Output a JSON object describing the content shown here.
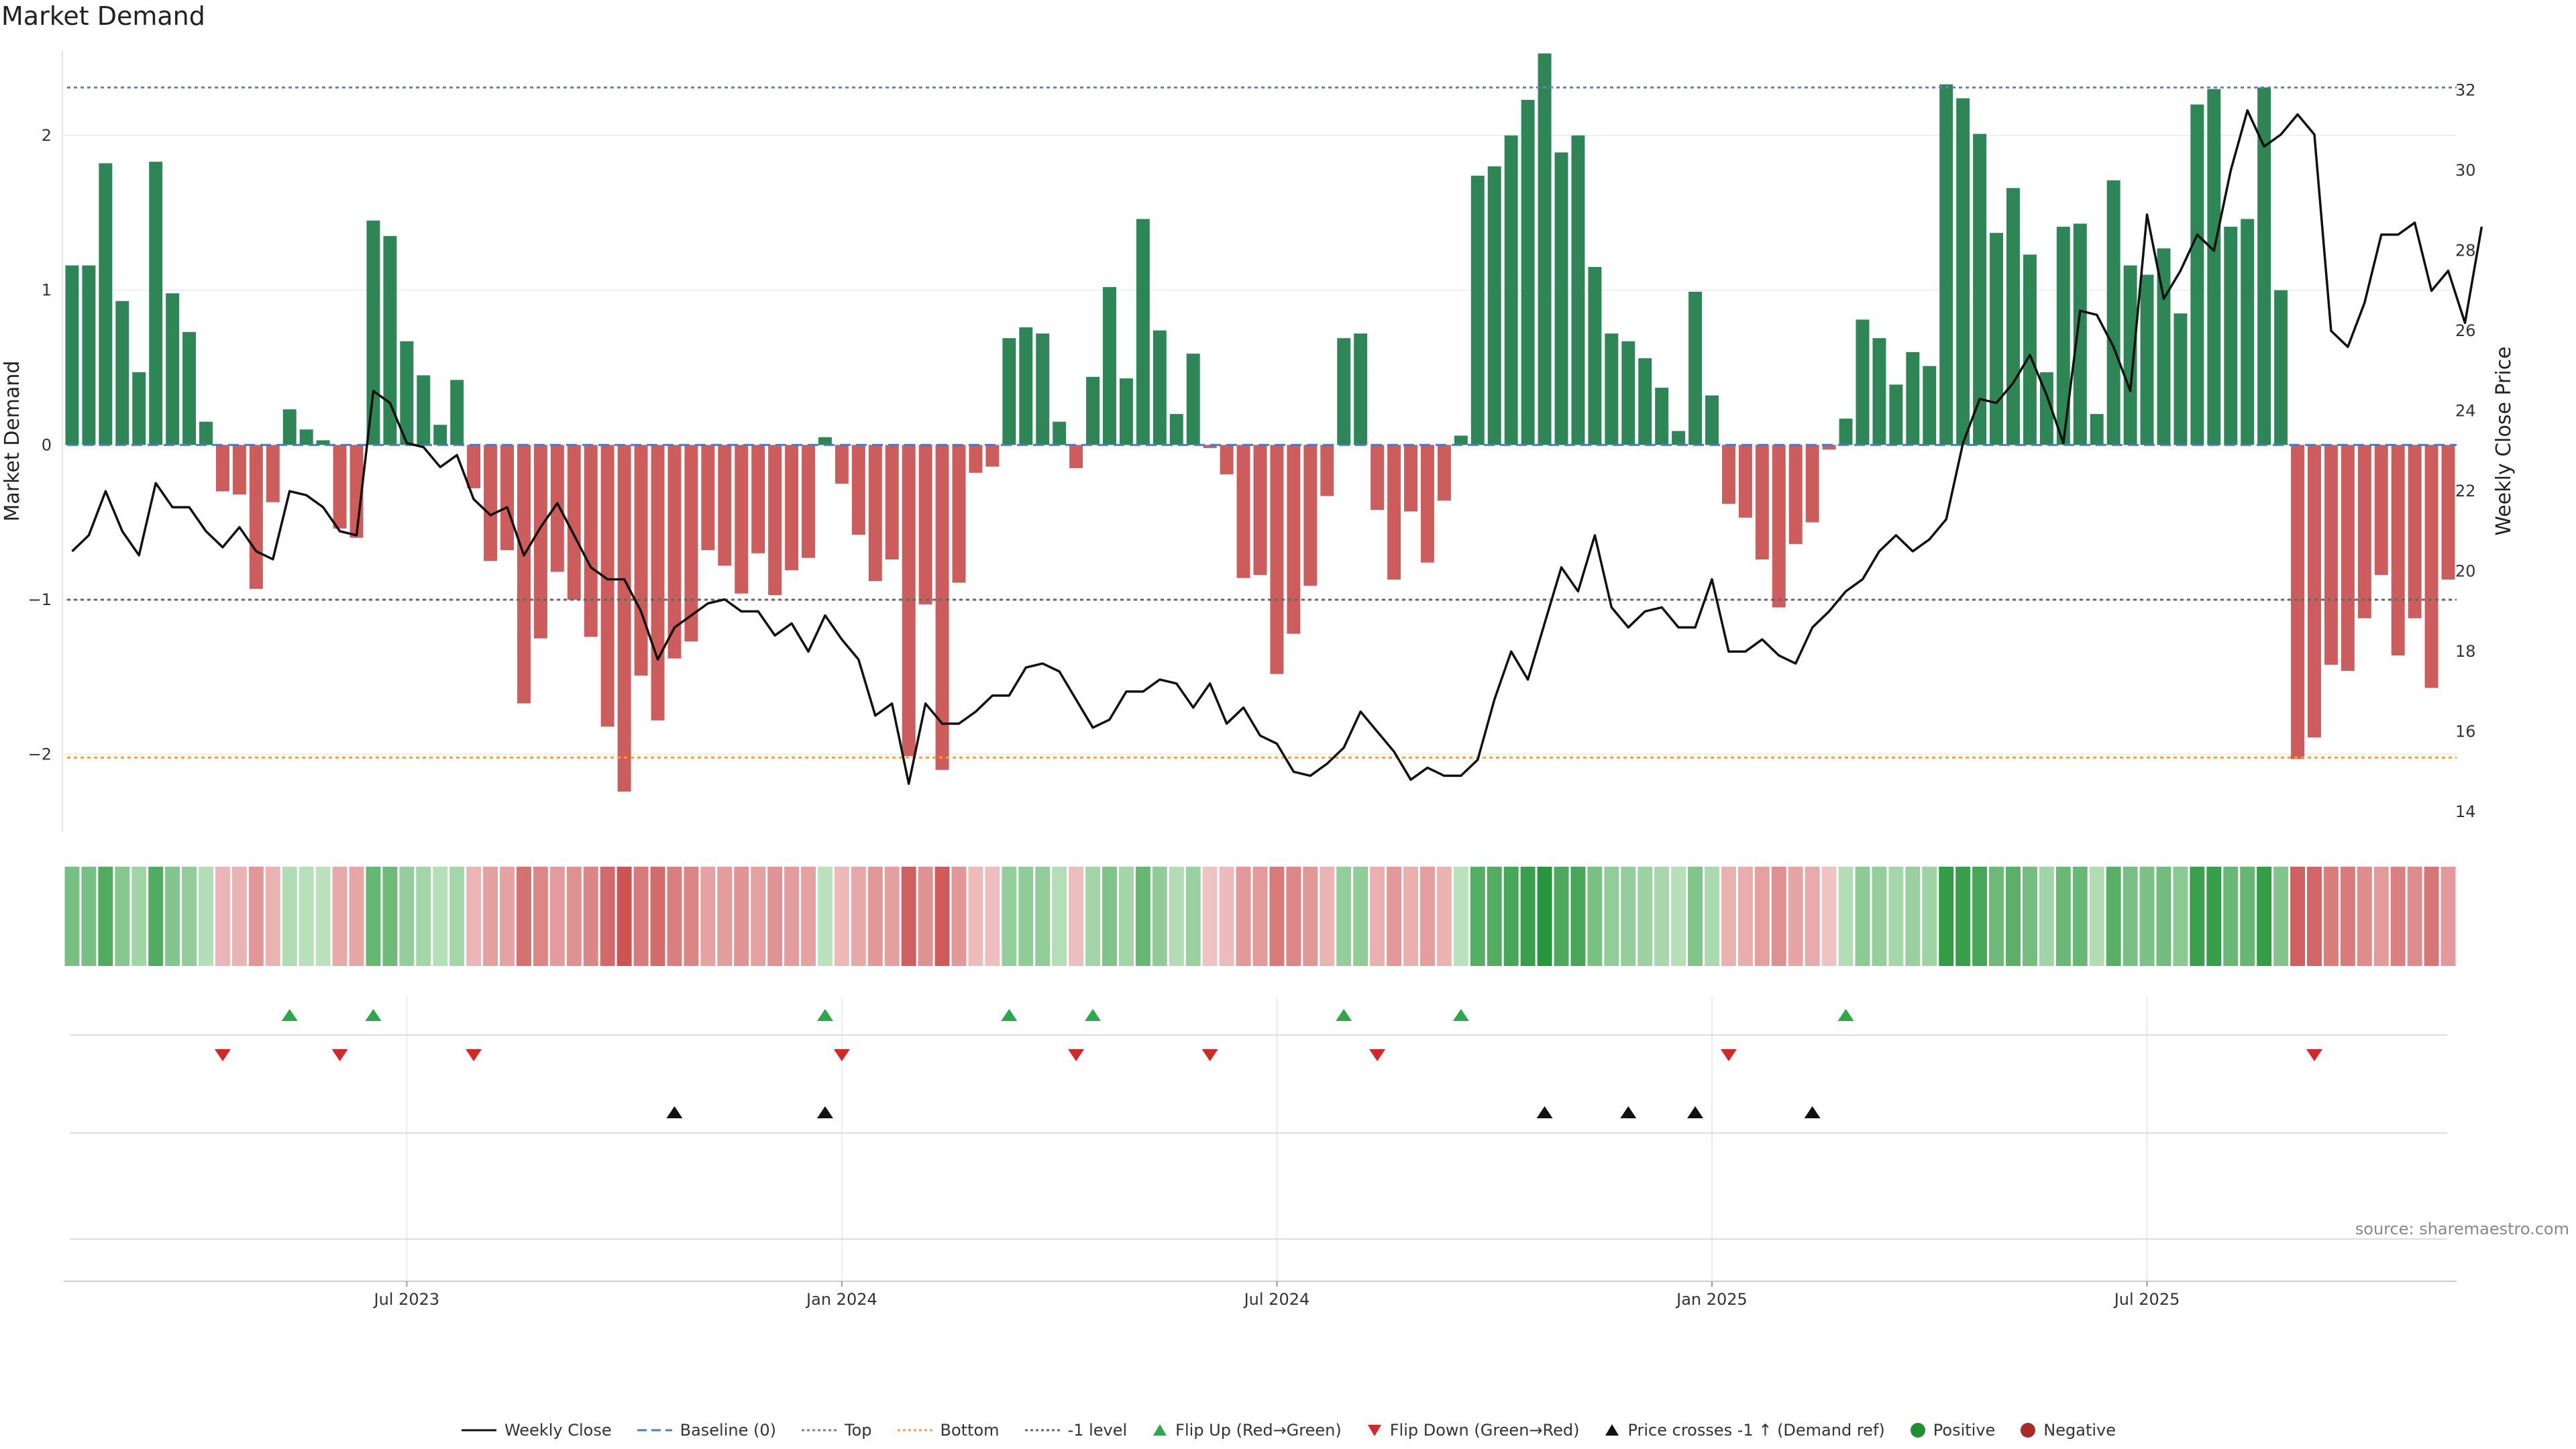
{
  "chart_data": {
    "type": "bar",
    "title": "Market Demand",
    "ylabel": "Market Demand",
    "y2label": "Weekly Close Price",
    "ylim": [
      -2.5,
      2.55
    ],
    "y2lim": [
      13.5,
      33.0
    ],
    "yticks": [
      -2,
      -1,
      0,
      1,
      2
    ],
    "yticklabels": [
      "−2",
      "−1",
      "0",
      "1",
      "2"
    ],
    "y2ticks": [
      14,
      16,
      18,
      20,
      22,
      24,
      26,
      28,
      30,
      32
    ],
    "x_ticks": [
      {
        "label": "Jul 2023",
        "index": 20
      },
      {
        "label": "Jan 2024",
        "index": 46
      },
      {
        "label": "Jul 2024",
        "index": 72
      },
      {
        "label": "Jan 2025",
        "index": 98
      },
      {
        "label": "Jul 2025",
        "index": 124
      }
    ],
    "levels": {
      "top": 2.31,
      "bottom": -2.02,
      "minus_one": -1.0,
      "baseline": 0
    },
    "demand": [
      1.16,
      1.16,
      1.82,
      0.93,
      0.47,
      1.83,
      0.98,
      0.73,
      0.15,
      -0.3,
      -0.32,
      -0.93,
      -0.37,
      0.23,
      0.1,
      0.03,
      -0.54,
      -0.6,
      1.45,
      1.35,
      0.67,
      0.45,
      0.13,
      0.42,
      -0.28,
      -0.75,
      -0.68,
      -1.67,
      -1.25,
      -0.82,
      -1.0,
      -1.24,
      -1.82,
      -2.24,
      -1.49,
      -1.78,
      -1.38,
      -1.27,
      -0.68,
      -0.78,
      -0.96,
      -0.7,
      -0.97,
      -0.81,
      -0.73,
      0.05,
      -0.25,
      -0.58,
      -0.88,
      -0.74,
      -2.01,
      -1.03,
      -2.1,
      -0.89,
      -0.18,
      -0.14,
      0.69,
      0.76,
      0.72,
      0.15,
      -0.15,
      0.44,
      1.02,
      0.43,
      1.46,
      0.74,
      0.2,
      0.59,
      -0.02,
      -0.19,
      -0.86,
      -0.84,
      -1.48,
      -1.22,
      -0.91,
      -0.33,
      0.69,
      0.72,
      -0.42,
      -0.87,
      -0.43,
      -0.76,
      -0.36,
      0.06,
      1.74,
      1.8,
      2.0,
      2.23,
      2.53,
      1.89,
      2.0,
      1.15,
      0.72,
      0.67,
      0.56,
      0.37,
      0.09,
      0.99,
      0.32,
      -0.38,
      -0.47,
      -0.74,
      -1.05,
      -0.64,
      -0.5,
      -0.03,
      0.17,
      0.81,
      0.69,
      0.39,
      0.6,
      0.51,
      2.33,
      2.24,
      2.01,
      1.37,
      1.66,
      1.23,
      0.47,
      1.41,
      1.43,
      0.2,
      1.71,
      1.16,
      1.1,
      1.27,
      0.85,
      2.2,
      2.3,
      1.41,
      1.46,
      2.31,
      1.0,
      -2.03,
      -1.89,
      -1.42,
      -1.46,
      -1.12,
      -0.84,
      -1.36,
      -1.12,
      -1.57,
      -0.87
    ],
    "weekly_close": [
      20.5,
      20.9,
      22.0,
      21.0,
      20.4,
      22.2,
      21.6,
      21.6,
      21.0,
      20.6,
      21.1,
      20.5,
      20.3,
      22.0,
      21.9,
      21.6,
      21.0,
      20.9,
      24.5,
      24.2,
      23.2,
      23.1,
      22.6,
      22.9,
      21.8,
      21.4,
      21.6,
      20.4,
      21.1,
      21.7,
      20.9,
      20.1,
      19.8,
      19.8,
      19.0,
      17.8,
      18.6,
      18.9,
      19.2,
      19.3,
      19.0,
      19.0,
      18.4,
      18.7,
      18.0,
      18.9,
      18.3,
      17.8,
      16.4,
      16.7,
      14.7,
      16.7,
      16.2,
      16.2,
      16.5,
      16.9,
      16.9,
      17.6,
      17.7,
      17.5,
      16.8,
      16.1,
      16.3,
      17.0,
      17.0,
      17.3,
      17.2,
      16.6,
      17.2,
      16.2,
      16.6,
      15.9,
      15.7,
      15.0,
      14.9,
      15.2,
      15.6,
      16.5,
      16.0,
      15.5,
      14.8,
      15.1,
      14.9,
      14.9,
      15.3,
      16.8,
      18.0,
      17.3,
      18.7,
      20.1,
      19.5,
      20.9,
      19.1,
      18.6,
      19.0,
      19.1,
      18.6,
      18.6,
      19.8,
      18.0,
      18.0,
      18.3,
      17.9,
      17.7,
      18.6,
      19.0,
      19.5,
      19.8,
      20.5,
      20.9,
      20.5,
      20.8,
      21.3,
      23.2,
      24.3,
      24.2,
      24.7,
      25.4,
      24.4,
      23.2,
      26.5,
      26.4,
      25.6,
      24.5,
      28.9,
      26.8,
      27.5,
      28.4,
      28.0,
      30.0,
      31.5,
      30.6,
      30.9,
      31.4,
      30.9,
      26.0,
      25.6,
      26.7,
      28.4,
      28.4,
      28.7,
      27.0,
      27.5,
      26.2,
      28.6
    ],
    "heat_strip": "shade of each bar: green = positive, red = negative, darker = larger |demand|",
    "flip_up_idx": [
      13,
      18,
      45,
      56,
      61,
      76,
      83,
      106
    ],
    "flip_down_idx": [
      9,
      16,
      24,
      46,
      60,
      68,
      78,
      99,
      134
    ],
    "price_cross_idx": [
      36,
      45,
      88,
      93,
      97,
      104
    ],
    "source_text": "source: sharemaestro.com",
    "legend": [
      {
        "label": "Weekly Close",
        "symbol": "line",
        "color": "#111111"
      },
      {
        "label": "Baseline (0)",
        "symbol": "dashed",
        "color": "#4a7ac0"
      },
      {
        "label": "Top",
        "symbol": "dotted",
        "color": "#7777cc"
      },
      {
        "label": "Bottom",
        "symbol": "dotted",
        "color": "#f0a040"
      },
      {
        "label": "-1 level",
        "symbol": "dotted",
        "color": "#666666"
      },
      {
        "label": "Flip Up (Red→Green)",
        "symbol": "tri-up",
        "color": "#2ca84a"
      },
      {
        "label": "Flip Down (Green→Red)",
        "symbol": "tri-down",
        "color": "#d62728"
      },
      {
        "label": "Price crosses -1 ↑ (Demand ref)",
        "symbol": "tri-up",
        "color": "#111111"
      },
      {
        "label": "Positive",
        "symbol": "dot",
        "color": "#1f8f2f"
      },
      {
        "label": "Negative",
        "symbol": "dot",
        "color": "#a82a2a"
      }
    ],
    "colors": {
      "positive_bar": "#2e8555",
      "negative_bar": "#cd5c5c"
    }
  }
}
